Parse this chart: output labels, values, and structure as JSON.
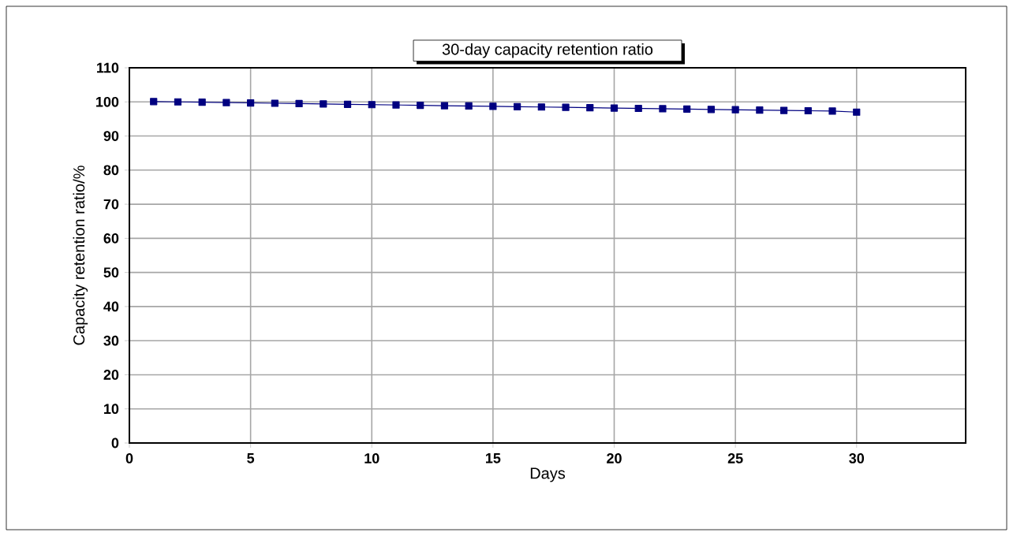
{
  "chart_data": {
    "type": "line",
    "title": "30-day capacity retention ratio",
    "xlabel": "Days",
    "ylabel": "Capacity retention ratio/%",
    "x": [
      1,
      2,
      3,
      4,
      5,
      6,
      7,
      8,
      9,
      10,
      11,
      12,
      13,
      14,
      15,
      16,
      17,
      18,
      19,
      20,
      21,
      22,
      23,
      24,
      25,
      26,
      27,
      28,
      29,
      30
    ],
    "series": [
      {
        "color": "#000080",
        "values": [
          100.1,
          100.0,
          99.9,
          99.8,
          99.7,
          99.6,
          99.5,
          99.4,
          99.3,
          99.2,
          99.1,
          99.0,
          98.9,
          98.8,
          98.7,
          98.6,
          98.5,
          98.4,
          98.3,
          98.2,
          98.1,
          98.0,
          97.9,
          97.8,
          97.7,
          97.6,
          97.5,
          97.4,
          97.3,
          97.0
        ]
      }
    ],
    "xlim": [
      0,
      34.5
    ],
    "ylim": [
      0,
      110
    ],
    "xticks": [
      0,
      5,
      10,
      15,
      20,
      25,
      30
    ],
    "yticks": [
      0,
      10,
      20,
      30,
      40,
      50,
      60,
      70,
      80,
      90,
      100,
      110
    ],
    "grid": true,
    "marker": "square",
    "line_style": "solid"
  }
}
